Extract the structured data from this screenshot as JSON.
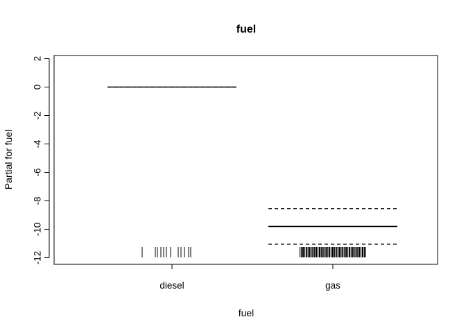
{
  "chart_data": {
    "type": "line",
    "title": "fuel",
    "xlabel": "fuel",
    "ylabel": "Partial for fuel",
    "categories": [
      "diesel",
      "gas"
    ],
    "y_ticks": [
      2,
      0,
      -2,
      -4,
      -6,
      -8,
      -10,
      -12
    ],
    "ylim": [
      -12.5,
      2.4
    ],
    "grid": false,
    "series": [
      {
        "values": [
          0,
          -9.8
        ]
      }
    ],
    "upper_band": [
      0,
      -8.55
    ],
    "lower_band": [
      0,
      -11.05
    ],
    "rug": {
      "diesel_ticks": 12,
      "gas_ticks": 60
    }
  }
}
